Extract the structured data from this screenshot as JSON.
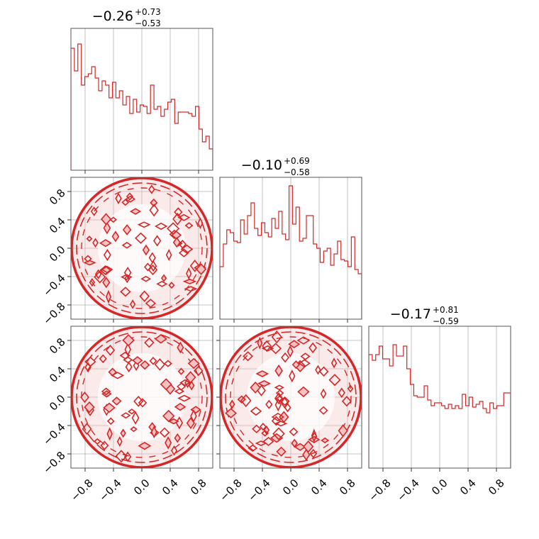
{
  "style": {
    "series_color": "#d62728",
    "fill_color": "#f4c2c2",
    "frame_color": "#555555",
    "grid_color": "#b0b0b0"
  },
  "chart_data": {
    "type": "corner",
    "grid": true,
    "range": [
      -1.0,
      1.0
    ],
    "tick_values": [
      -0.8,
      -0.4,
      0.0,
      0.4,
      0.8
    ],
    "tick_labels": [
      "−0.8",
      "−0.4",
      "0.0",
      "0.4",
      "0.8"
    ],
    "panels": [
      {
        "id": "hist-0",
        "type": "histogram",
        "row": 0,
        "col": 0,
        "title": {
          "median": "−0.26",
          "plus": "+0.73",
          "minus": "−0.53"
        },
        "bin_edges": [
          -1.0,
          0.95
        ],
        "ylim": [
          0,
          1
        ],
        "counts": [
          0.86,
          0.7,
          0.89,
          0.6,
          0.66,
          0.68,
          0.73,
          0.65,
          0.56,
          0.63,
          0.6,
          0.51,
          0.62,
          0.51,
          0.56,
          0.46,
          0.52,
          0.4,
          0.5,
          0.41,
          0.46,
          0.45,
          0.4,
          0.6,
          0.43,
          0.45,
          0.38,
          0.43,
          0.48,
          0.5,
          0.33,
          0.41,
          0.41,
          0.41,
          0.4,
          0.38,
          0.45,
          0.29,
          0.2,
          0.24,
          0.15
        ]
      },
      {
        "id": "hist-1",
        "type": "histogram",
        "row": 1,
        "col": 1,
        "title": {
          "median": "−0.10",
          "plus": "+0.69",
          "minus": "−0.58"
        },
        "ylim": [
          0,
          1
        ],
        "counts": [
          0.37,
          0.53,
          0.63,
          0.61,
          0.55,
          0.54,
          0.7,
          0.6,
          0.73,
          0.82,
          0.64,
          0.59,
          0.68,
          0.61,
          0.58,
          0.71,
          0.64,
          0.76,
          0.6,
          0.56,
          0.94,
          0.67,
          0.79,
          0.55,
          0.57,
          0.73,
          0.73,
          0.53,
          0.5,
          0.4,
          0.48,
          0.5,
          0.38,
          0.46,
          0.55,
          0.42,
          0.41,
          0.37,
          0.58,
          0.35,
          0.32
        ]
      },
      {
        "id": "hist-2",
        "type": "histogram",
        "row": 2,
        "col": 2,
        "title": {
          "median": "−0.17",
          "plus": "+0.81",
          "minus": "−0.59"
        },
        "ylim": [
          0,
          1
        ],
        "counts": [
          0.8,
          0.76,
          0.8,
          0.86,
          0.77,
          0.77,
          0.72,
          0.87,
          0.79,
          0.79,
          0.86,
          0.7,
          0.59,
          0.51,
          0.5,
          0.5,
          0.58,
          0.48,
          0.44,
          0.46,
          0.46,
          0.44,
          0.42,
          0.45,
          0.42,
          0.44,
          0.42,
          0.52,
          0.44,
          0.5,
          0.43,
          0.45,
          0.47,
          0.42,
          0.39,
          0.46,
          0.42,
          0.44,
          0.44,
          0.53,
          0.53
        ]
      },
      {
        "id": "scatter-1-0",
        "type": "contour",
        "row": 1,
        "col": 0,
        "shape": "uniform-disk",
        "radius": 1.0
      },
      {
        "id": "scatter-2-0",
        "type": "contour",
        "row": 2,
        "col": 0,
        "shape": "uniform-disk",
        "radius": 1.0
      },
      {
        "id": "scatter-2-1",
        "type": "contour",
        "row": 2,
        "col": 1,
        "shape": "uniform-disk",
        "radius": 1.0
      }
    ]
  }
}
